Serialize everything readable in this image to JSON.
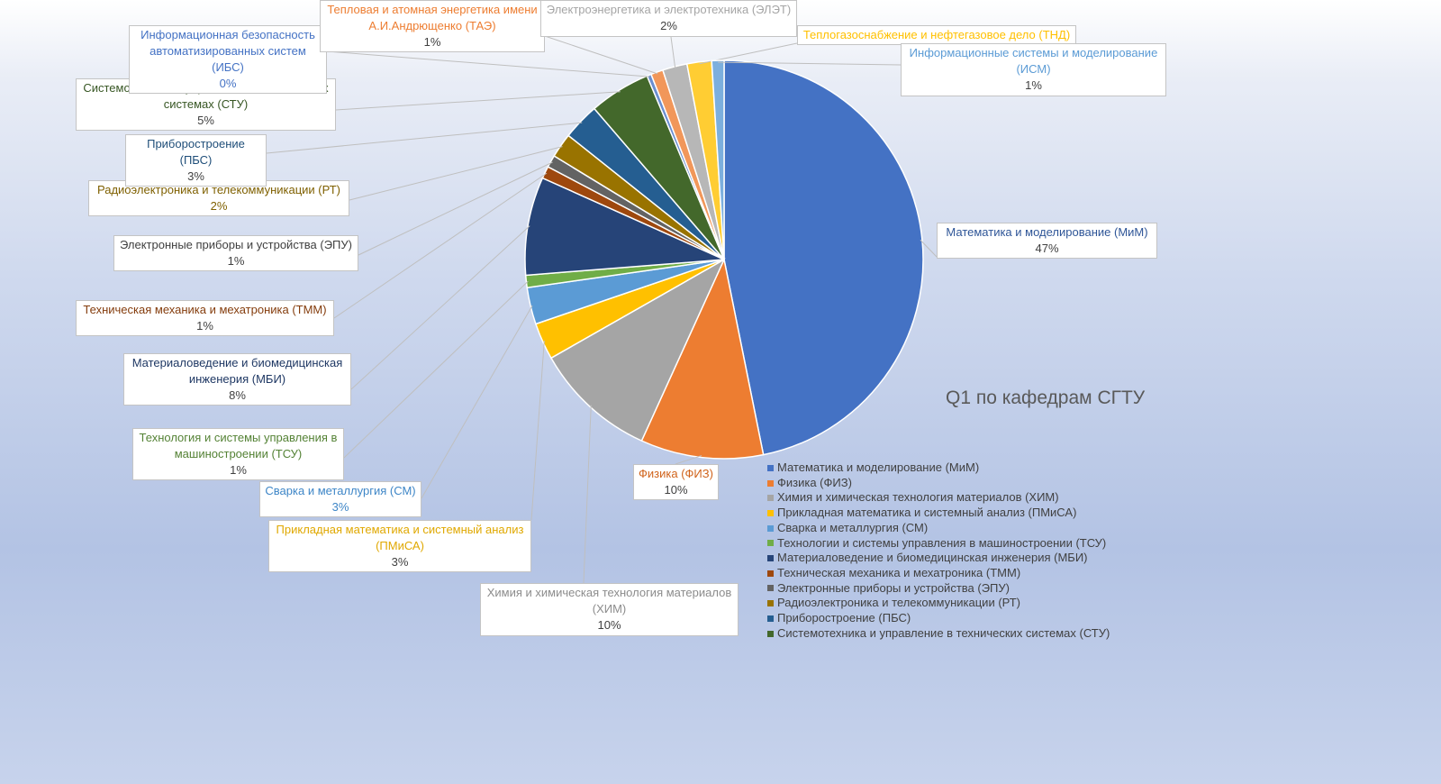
{
  "chart_data": {
    "type": "pie",
    "title": "Q1 по кафедрам СГТУ",
    "legend_position": "bottom-right",
    "slices": [
      {
        "name": "Математика и моделирование (МиМ)",
        "label": "Математика и моделирование (МиМ)",
        "value": 47,
        "pct_label": "47%",
        "color": "#4472C4",
        "label_color": "#2E5597"
      },
      {
        "name": "Физика (ФИЗ)",
        "label": "Физика (ФИЗ)",
        "value": 10,
        "pct_label": "10%",
        "color": "#ED7D31",
        "label_color": "#D0631B"
      },
      {
        "name": "Химия и химическая технология материалов (ХИМ)",
        "label": "Химия и химическая технология материалов (ХИМ)",
        "value": 10,
        "pct_label": "10%",
        "color": "#A5A5A5",
        "label_color": "#8C8C8C"
      },
      {
        "name": "Прикладная математика и системный анализ (ПМиСА)",
        "label": "Прикладная математика и системный анализ (ПМиСА)",
        "value": 3,
        "pct_label": "3%",
        "color": "#FFC000",
        "label_color": "#E0A800"
      },
      {
        "name": "Сварка и металлургия (СМ)",
        "label": "Сварка и металлургия (СМ)",
        "value": 3,
        "pct_label": "3%",
        "color": "#5B9BD5",
        "label_color": "#3E86C7"
      },
      {
        "name": "Технологии и системы управления в машиностроении (ТСУ)",
        "label": "Технология и системы управления в машиностроении (ТСУ)",
        "value": 1,
        "pct_label": "1%",
        "color": "#70AD47",
        "label_color": "#548235"
      },
      {
        "name": "Материаловедение и биомедицинская инженерия (МБИ)",
        "label": "Материаловедение и биомедицинская инженерия (МБИ)",
        "value": 8,
        "pct_label": "8%",
        "color": "#264478",
        "label_color": "#1F3864"
      },
      {
        "name": "Техническая механика и мехатроника (ТММ)",
        "label": "Техническая механика и мехатроника (ТММ)",
        "value": 1,
        "pct_label": "1%",
        "color": "#9E480E",
        "label_color": "#843C0C"
      },
      {
        "name": "Электронные приборы и устройства (ЭПУ)",
        "label": "Электронные приборы и устройства (ЭПУ)",
        "value": 1,
        "pct_label": "1%",
        "color": "#636363",
        "label_color": "#404040"
      },
      {
        "name": "Радиоэлектроника и телекоммуникации (РТ)",
        "label": "Радиоэлектроника и телекоммуникации (РТ)",
        "value": 2,
        "pct_label": "2%",
        "color": "#997300",
        "label_color": "#7F6000"
      },
      {
        "name": "Приборостроение (ПБС)",
        "label": "Приборостроение (ПБС)",
        "value": 3,
        "pct_label": "3%",
        "color": "#255E91",
        "label_color": "#1F4E79"
      },
      {
        "name": "Системотехника и управление в технических системах (СТУ)",
        "label": "Системотехника и управление в технических системах (СТУ)",
        "value": 5,
        "pct_label": "5%",
        "color": "#43682B",
        "label_color": "#375623"
      },
      {
        "name": "Информационная безопасность автоматизированных систем (ИБС)",
        "label": "Информационная безопасность автоматизированных систем (ИБС)",
        "value": 0,
        "pct_label": "0%",
        "color": "#698ED0",
        "label_color": "#4472C4"
      },
      {
        "name": "Тепловая и атомная энергетика имени А.И.Андрющенко (ТАЭ)",
        "label": "Тепловая и атомная энергетика имени А.И.Андрющенко (ТАЭ)",
        "value": 1,
        "pct_label": "1%",
        "color": "#F1975A",
        "label_color": "#ED7D31"
      },
      {
        "name": "Электроэнергетика и электротехника (ЭЛЭТ)",
        "label": "Электроэнергетика и электротехника (ЭЛЭТ)",
        "value": 2,
        "pct_label": "2%",
        "color": "#B7B7B7",
        "label_color": "#A5A5A5"
      },
      {
        "name": "Теплогазоснабжение и нефтегазовое дело (ТНД)",
        "label": "Теплогазоснабжение и нефтегазовое дело (ТНД)",
        "value": 2,
        "pct_label": "",
        "color": "#FFCD33",
        "label_color": "#FFC000"
      },
      {
        "name": "Информационные системы и моделирование (ИСМ)",
        "label": "Информационные системы и моделирование (ИСМ)",
        "value": 1,
        "pct_label": "1%",
        "color": "#7CAFDD",
        "label_color": "#5B9BD5"
      }
    ],
    "legend_entries": [
      "Математика и моделирование (МиМ)",
      "Физика (ФИЗ)",
      "Химия и химическая технология материалов (ХИМ)",
      "Прикладная математика и системный анализ (ПМиСА)",
      "Сварка и металлургия (СМ)",
      "Технологии и системы управления в машиностроении (ТСУ)",
      "Материаловедение и биомедицинская инженерия (МБИ)",
      "Техническая механика и мехатроника (ТММ)",
      "Электронные приборы и устройства (ЭПУ)",
      "Радиоэлектроника и телекоммуникации (РТ)",
      "Приборостроение (ПБС)",
      "Системотехника и управление в технических системах (СТУ)"
    ]
  }
}
